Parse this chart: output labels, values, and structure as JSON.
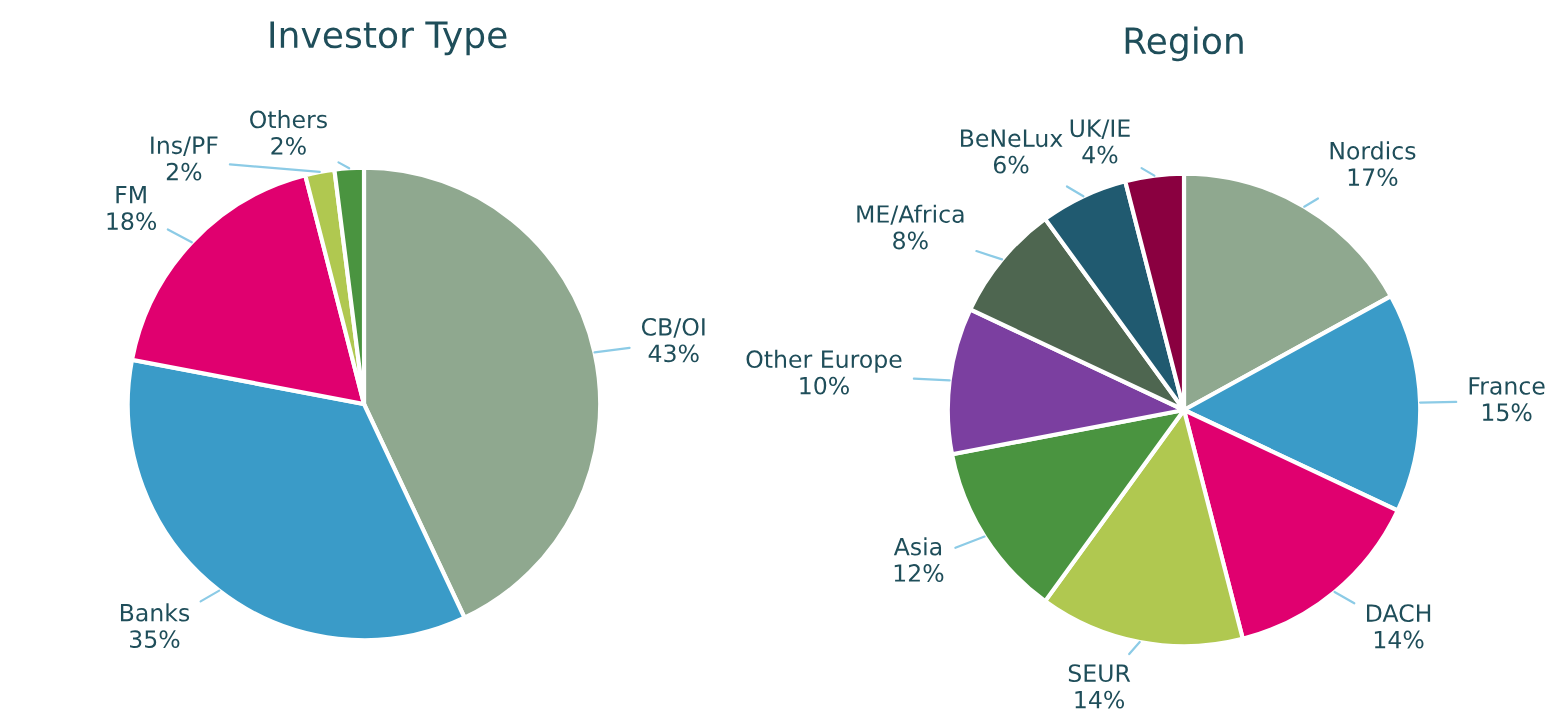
{
  "chart_data": [
    {
      "type": "pie",
      "title": "Investor Type",
      "categories": [
        "CB/OI",
        "Banks",
        "FM",
        "Ins/PF",
        "Others"
      ],
      "values": [
        43,
        35,
        18,
        2,
        2
      ],
      "value_labels": [
        "43%",
        "35%",
        "18%",
        "2%",
        "2%"
      ],
      "colors": [
        "#8fa88f",
        "#3a9bc8",
        "#e0006f",
        "#b0c850",
        "#4a9440"
      ]
    },
    {
      "type": "pie",
      "title": "Region",
      "categories": [
        "Nordics",
        "France",
        "DACH",
        "SEUR",
        "Asia",
        "Other Europe",
        "ME/Africa",
        "BeNeLux",
        "UK/IE"
      ],
      "values": [
        17,
        15,
        14,
        14,
        12,
        10,
        8,
        6,
        4
      ],
      "value_labels": [
        "17%",
        "15%",
        "14%",
        "14%",
        "12%",
        "10%",
        "8%",
        "6%",
        "4%"
      ],
      "colors": [
        "#8fa88f",
        "#3a9bc8",
        "#e0006f",
        "#b0c850",
        "#4a9440",
        "#7b3fa0",
        "#4e6650",
        "#205a70",
        "#8a0040"
      ]
    }
  ]
}
